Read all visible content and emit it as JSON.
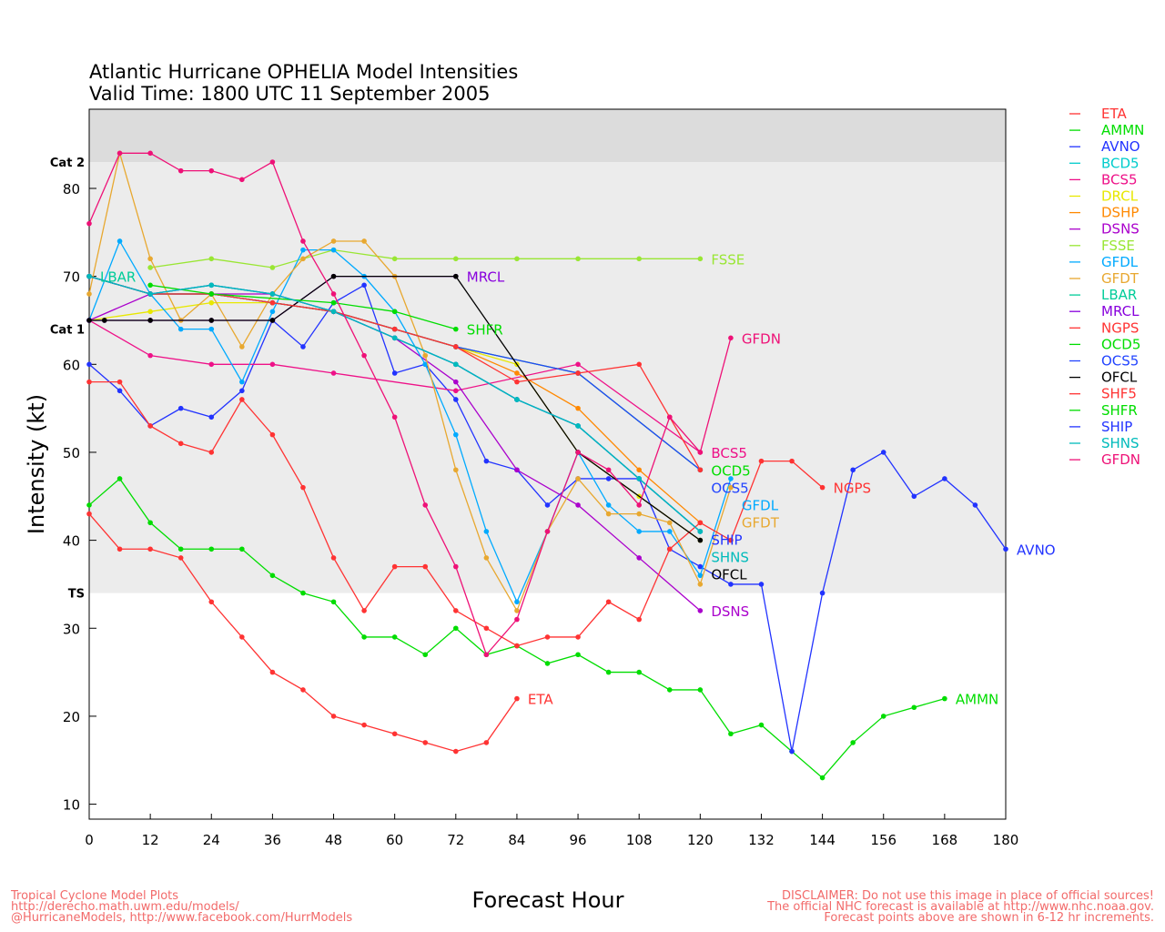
{
  "chart_data": {
    "type": "line",
    "title": "Atlantic Hurricane OPHELIA Model Intensities",
    "subtitle": "Valid Time: 1800 UTC 11 September 2005",
    "xlabel": "Forecast Hour",
    "ylabel": "Intensity (kt)",
    "xlim": [
      0,
      180
    ],
    "ylim": [
      8.3,
      89
    ],
    "xticks": [
      0,
      12,
      24,
      36,
      48,
      60,
      72,
      84,
      96,
      108,
      120,
      132,
      144,
      156,
      168,
      180
    ],
    "yticks": [
      10,
      20,
      30,
      40,
      50,
      60,
      70,
      80
    ],
    "grid": false,
    "legend_position": "right",
    "categories_bands": [
      {
        "label": "TS",
        "value": 34
      },
      {
        "label": "Cat 1",
        "value": 64
      },
      {
        "label": "Cat 2",
        "value": 83
      }
    ],
    "series": [
      {
        "name": "ETA",
        "color": "#ff3333",
        "label": "ETA",
        "x": [
          0,
          6,
          12,
          18,
          24,
          30,
          36,
          42,
          48,
          54,
          60,
          66,
          72,
          78,
          84
        ],
        "y": [
          43,
          39,
          39,
          38,
          33,
          29,
          25,
          23,
          20,
          19,
          18,
          17,
          16,
          17,
          22
        ]
      },
      {
        "name": "AMMN",
        "color": "#00dd00",
        "label": "AMMN",
        "x": [
          0,
          6,
          12,
          18,
          24,
          30,
          36,
          42,
          48,
          54,
          60,
          66,
          72,
          78,
          84,
          90,
          96,
          102,
          108,
          114,
          120,
          126,
          132,
          138,
          144,
          150,
          156,
          162,
          168
        ],
        "y": [
          44,
          47,
          42,
          39,
          39,
          39,
          36,
          34,
          33,
          29,
          29,
          27,
          30,
          27,
          28,
          26,
          27,
          25,
          25,
          23,
          23,
          18,
          19,
          16,
          13,
          17,
          20,
          21,
          22
        ]
      },
      {
        "name": "AVNO",
        "color": "#2233ff",
        "label": "AVNO",
        "x": [
          0,
          6,
          12,
          18,
          24,
          30,
          36,
          42,
          48,
          54,
          60,
          66,
          72,
          78,
          84,
          90,
          96,
          102,
          108,
          114,
          120,
          126,
          132,
          138,
          144,
          150,
          156,
          162,
          168,
          174,
          180
        ],
        "y": [
          60,
          57,
          53,
          55,
          54,
          57,
          65,
          62,
          67,
          69,
          59,
          60,
          56,
          49,
          48,
          44,
          47,
          47,
          47,
          39,
          37,
          35,
          35,
          16,
          34,
          48,
          50,
          45,
          47,
          44,
          39
        ]
      },
      {
        "name": "BCD5",
        "color": "#00cccc",
        "label": "",
        "x": [
          0,
          12,
          24,
          36,
          48,
          60,
          72,
          84,
          96,
          108,
          120
        ],
        "y": [
          70,
          68,
          68,
          67,
          66,
          63,
          60,
          56,
          53,
          47,
          41
        ]
      },
      {
        "name": "BCS5",
        "color": "#ee1188",
        "label": "BCS5",
        "x": [
          0,
          12,
          24,
          36,
          48,
          72,
          96,
          120
        ],
        "y": [
          65,
          61,
          60,
          60,
          59,
          57,
          60,
          50
        ]
      },
      {
        "name": "DRCL",
        "color": "#e8e800",
        "label": "",
        "x": [
          0,
          12,
          24,
          36,
          48,
          60,
          72,
          84,
          96,
          108,
          120
        ],
        "y": [
          65,
          66,
          67,
          67,
          66,
          64,
          62,
          60,
          50,
          45,
          40
        ]
      },
      {
        "name": "DSHP",
        "color": "#ff8800",
        "label": "",
        "x": [
          0,
          12,
          24,
          36,
          48,
          60,
          72,
          84,
          96,
          108,
          120
        ],
        "y": [
          70,
          68,
          68,
          67,
          66,
          64,
          62,
          59,
          55,
          48,
          42
        ]
      },
      {
        "name": "DSNS",
        "color": "#aa00cc",
        "label": "DSNS",
        "x": [
          0,
          12,
          24,
          36,
          48,
          60,
          72,
          84,
          96,
          108,
          120
        ],
        "y": [
          65,
          68,
          68,
          68,
          66,
          63,
          58,
          48,
          44,
          38,
          32
        ]
      },
      {
        "name": "FSSE",
        "color": "#99e633",
        "label": "FSSE",
        "x": [
          12,
          24,
          36,
          48,
          60,
          72,
          84,
          96,
          108,
          120
        ],
        "y": [
          71,
          72,
          71,
          73,
          72,
          72,
          72,
          72,
          72,
          72
        ]
      },
      {
        "name": "GFDL",
        "color": "#00aaff",
        "label": "GFDL",
        "x": [
          0,
          6,
          12,
          18,
          24,
          30,
          36,
          42,
          48,
          54,
          60,
          66,
          72,
          78,
          84,
          90,
          96,
          102,
          108,
          114,
          120,
          126
        ],
        "y": [
          65,
          74,
          68,
          64,
          64,
          58,
          66,
          73,
          73,
          70,
          66,
          60,
          52,
          41,
          33,
          41,
          50,
          44,
          41,
          41,
          36,
          47
        ]
      },
      {
        "name": "GFDT",
        "color": "#e8a830",
        "label": "GFDT",
        "x": [
          0,
          6,
          12,
          18,
          24,
          30,
          36,
          42,
          48,
          54,
          60,
          66,
          72,
          78,
          84,
          90,
          96,
          102,
          108,
          114,
          120,
          126
        ],
        "y": [
          68,
          84,
          72,
          65,
          68,
          62,
          68,
          72,
          74,
          74,
          70,
          61,
          48,
          38,
          32,
          41,
          47,
          43,
          43,
          42,
          35,
          46
        ]
      },
      {
        "name": "LBAR",
        "color": "#00cc99",
        "label": "LBAR",
        "x": [
          0,
          12,
          24,
          36,
          48,
          60,
          72,
          84,
          96,
          108,
          120
        ],
        "y": [
          70,
          68,
          69,
          68,
          66,
          63,
          60,
          56,
          53,
          47,
          41
        ]
      },
      {
        "name": "MRCL",
        "color": "#8800dd",
        "label": "MRCL",
        "x": [
          0,
          3,
          12,
          24,
          36,
          48,
          72
        ],
        "y": [
          65,
          65,
          65,
          65,
          65,
          70,
          70
        ]
      },
      {
        "name": "NGPS",
        "color": "#ff3333",
        "label": "NGPS",
        "x": [
          0,
          6,
          12,
          18,
          24,
          30,
          36,
          42,
          48,
          54,
          60,
          66,
          72,
          78,
          84,
          90,
          96,
          102,
          108,
          114,
          120,
          126,
          132,
          138,
          144
        ],
        "y": [
          58,
          58,
          53,
          51,
          50,
          56,
          52,
          46,
          38,
          32,
          37,
          37,
          32,
          30,
          28,
          29,
          29,
          33,
          31,
          39,
          42,
          40,
          49,
          49,
          46
        ]
      },
      {
        "name": "OCD5",
        "color": "#00dd00",
        "label": "OCD5",
        "x": [
          0,
          12,
          24,
          36,
          48,
          60,
          72,
          96,
          120
        ],
        "y": [
          70,
          68,
          68,
          67,
          66,
          64,
          62,
          59,
          48
        ]
      },
      {
        "name": "OCS5",
        "color": "#2244ff",
        "label": "OCS5",
        "x": [
          0,
          12,
          24,
          36,
          48,
          60,
          72,
          96,
          120
        ],
        "y": [
          70,
          68,
          68,
          67,
          66,
          64,
          62,
          59,
          48
        ]
      },
      {
        "name": "OFCL",
        "color": "#000000",
        "label": "OFCL",
        "x": [
          0,
          3,
          12,
          24,
          36,
          48,
          72,
          96,
          120
        ],
        "y": [
          65,
          65,
          65,
          65,
          65,
          70,
          70,
          50,
          40
        ]
      },
      {
        "name": "SHF5",
        "color": "#ff3333",
        "label": "",
        "x": [
          0,
          12,
          24,
          36,
          48,
          60,
          72,
          84,
          96,
          108,
          114,
          120
        ],
        "y": [
          70,
          68,
          68,
          67,
          66,
          64,
          62,
          58,
          59,
          60,
          54,
          48
        ]
      },
      {
        "name": "SHFR",
        "color": "#00dd00",
        "label": "SHFR",
        "x": [
          12,
          24,
          48,
          60,
          72
        ],
        "y": [
          69,
          68,
          67,
          66,
          64
        ]
      },
      {
        "name": "SHIP",
        "color": "#2233ff",
        "label": "SHIP",
        "x": [
          0,
          12,
          24,
          36,
          48,
          60,
          72,
          84,
          96,
          108,
          120
        ],
        "y": [
          70,
          68,
          69,
          68,
          66,
          63,
          60,
          56,
          53,
          47,
          41
        ]
      },
      {
        "name": "SHNS",
        "color": "#00bbbb",
        "label": "SHNS",
        "x": [
          0,
          12,
          24,
          36,
          48,
          60,
          72,
          84,
          96,
          108,
          120
        ],
        "y": [
          70,
          68,
          69,
          68,
          66,
          63,
          60,
          56,
          53,
          47,
          41
        ]
      },
      {
        "name": "GFDN",
        "color": "#ee1177",
        "label": "GFDN",
        "x": [
          0,
          6,
          12,
          18,
          24,
          30,
          36,
          42,
          48,
          54,
          60,
          66,
          72,
          78,
          84,
          90,
          96,
          102,
          108,
          114,
          120,
          126
        ],
        "y": [
          76,
          84,
          84,
          82,
          82,
          81,
          83,
          74,
          68,
          61,
          54,
          44,
          37,
          27,
          31,
          41,
          50,
          48,
          44,
          54,
          50,
          63
        ]
      }
    ]
  },
  "footer": {
    "left": [
      "Tropical Cyclone Model Plots",
      "http://derecho.math.uwm.edu/models/",
      "@HurricaneModels, http://www.facebook.com/HurrModels"
    ],
    "right": [
      "DISCLAIMER: Do not use this image in place of official sources!",
      "The official NHC forecast is available at http://www.nhc.noaa.gov.",
      "Forecast points above are shown in 6-12 hr increments."
    ]
  }
}
